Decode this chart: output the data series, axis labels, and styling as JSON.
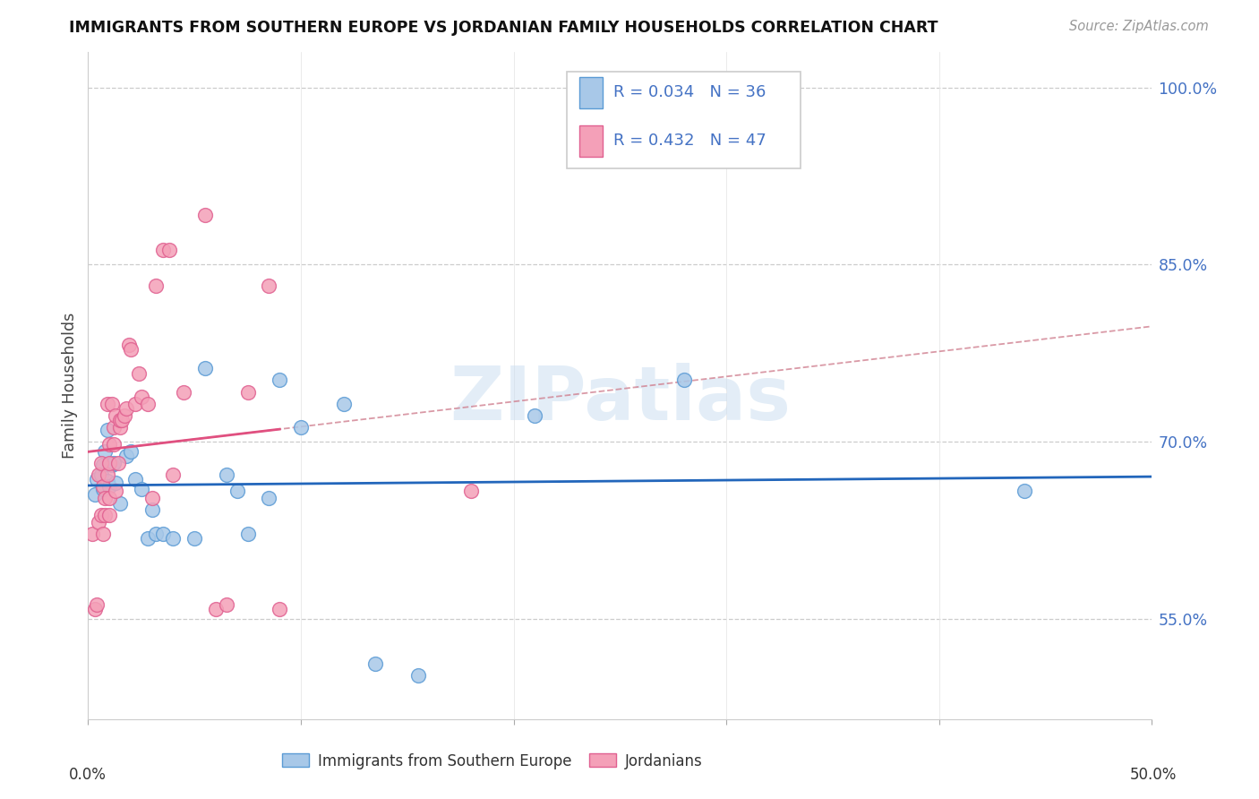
{
  "title": "IMMIGRANTS FROM SOUTHERN EUROPE VS JORDANIAN FAMILY HOUSEHOLDS CORRELATION CHART",
  "source": "Source: ZipAtlas.com",
  "ylabel": "Family Households",
  "yticks": [
    0.55,
    0.7,
    0.85,
    1.0
  ],
  "ytick_labels": [
    "55.0%",
    "70.0%",
    "85.0%",
    "100.0%"
  ],
  "xlim": [
    0.0,
    0.5
  ],
  "ylim": [
    0.465,
    1.03
  ],
  "legend1_r": "0.034",
  "legend1_n": "36",
  "legend2_r": "0.432",
  "legend2_n": "47",
  "color_blue": "#a8c8e8",
  "color_pink": "#f4a0b8",
  "edge_blue": "#5b9bd5",
  "edge_pink": "#e06090",
  "line_blue": "#2266bb",
  "line_pink": "#e05080",
  "line_dash_color": "#d08090",
  "text_blue": "#4472c4",
  "text_pink": "#e05080",
  "watermark_color": "#c8ddf0",
  "watermark": "ZIPatlas",
  "blue_scatter_x": [
    0.003,
    0.004,
    0.006,
    0.007,
    0.007,
    0.008,
    0.009,
    0.009,
    0.01,
    0.011,
    0.012,
    0.013,
    0.015,
    0.018,
    0.02,
    0.022,
    0.025,
    0.028,
    0.03,
    0.032,
    0.035,
    0.04,
    0.05,
    0.055,
    0.065,
    0.07,
    0.075,
    0.085,
    0.09,
    0.1,
    0.12,
    0.135,
    0.155,
    0.21,
    0.28,
    0.44
  ],
  "blue_scatter_y": [
    0.655,
    0.668,
    0.672,
    0.66,
    0.68,
    0.692,
    0.71,
    0.667,
    0.662,
    0.68,
    0.682,
    0.665,
    0.648,
    0.688,
    0.692,
    0.668,
    0.66,
    0.618,
    0.642,
    0.622,
    0.622,
    0.618,
    0.618,
    0.762,
    0.672,
    0.658,
    0.622,
    0.652,
    0.752,
    0.712,
    0.732,
    0.512,
    0.502,
    0.722,
    0.752,
    0.658
  ],
  "pink_scatter_x": [
    0.002,
    0.003,
    0.004,
    0.005,
    0.005,
    0.006,
    0.006,
    0.007,
    0.007,
    0.008,
    0.008,
    0.009,
    0.009,
    0.01,
    0.01,
    0.01,
    0.01,
    0.011,
    0.012,
    0.012,
    0.013,
    0.013,
    0.014,
    0.015,
    0.015,
    0.016,
    0.017,
    0.018,
    0.019,
    0.02,
    0.022,
    0.024,
    0.025,
    0.028,
    0.03,
    0.032,
    0.035,
    0.038,
    0.04,
    0.045,
    0.055,
    0.06,
    0.065,
    0.075,
    0.085,
    0.09,
    0.18
  ],
  "pink_scatter_y": [
    0.622,
    0.558,
    0.562,
    0.632,
    0.672,
    0.682,
    0.638,
    0.622,
    0.662,
    0.638,
    0.652,
    0.672,
    0.732,
    0.638,
    0.652,
    0.682,
    0.698,
    0.732,
    0.698,
    0.712,
    0.658,
    0.722,
    0.682,
    0.712,
    0.718,
    0.718,
    0.722,
    0.728,
    0.782,
    0.778,
    0.732,
    0.758,
    0.738,
    0.732,
    0.652,
    0.832,
    0.862,
    0.862,
    0.672,
    0.742,
    0.892,
    0.558,
    0.562,
    0.742,
    0.832,
    0.558,
    0.658
  ]
}
